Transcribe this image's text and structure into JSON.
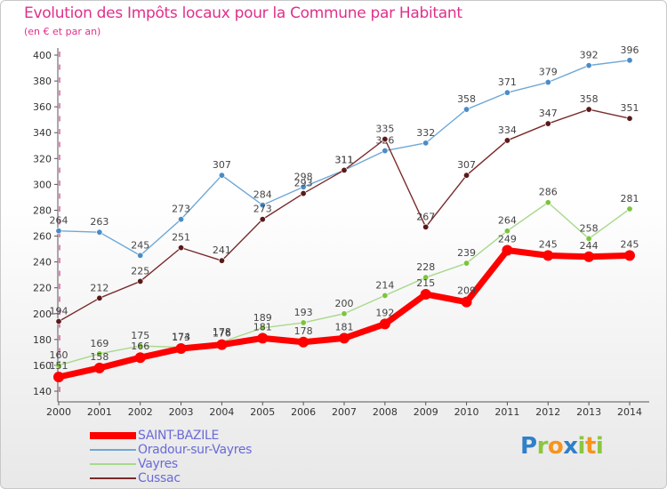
{
  "header": {
    "title": "Evolution des Impôts locaux pour la Commune par Habitant",
    "subtitle": "(en € et par an)"
  },
  "logo": {
    "text": "Proxiti",
    "letters": [
      {
        "ch": "P",
        "color": "#2f80c8"
      },
      {
        "ch": "r",
        "color": "#8cc63f"
      },
      {
        "ch": "o",
        "color": "#f7941d"
      },
      {
        "ch": "x",
        "color": "#2f80c8"
      },
      {
        "ch": "i",
        "color": "#8cc63f"
      },
      {
        "ch": "t",
        "color": "#f7941d"
      },
      {
        "ch": "i",
        "color": "#8cc63f"
      }
    ]
  },
  "chart_data": {
    "type": "line",
    "x": [
      2000,
      2001,
      2002,
      2003,
      2004,
      2005,
      2006,
      2007,
      2008,
      2009,
      2010,
      2011,
      2012,
      2013,
      2014
    ],
    "ylim": [
      140,
      400
    ],
    "yticks": [
      140,
      160,
      180,
      200,
      220,
      240,
      260,
      280,
      300,
      320,
      340,
      360,
      380,
      400
    ],
    "grid": false,
    "legend_position": "bottom-left",
    "series": [
      {
        "name": "Oradour-sur-Vayres",
        "color": "#6fa8d6",
        "marker_color": "#4b8cc8",
        "style": "thin",
        "values": [
          264,
          263,
          245,
          273,
          307,
          284,
          298,
          311,
          326,
          332,
          358,
          371,
          379,
          392,
          396
        ],
        "labels": [
          "264",
          "263",
          "245",
          "273",
          "307",
          "284",
          "298",
          "311",
          "326",
          "332",
          "358",
          "371",
          "379",
          "392",
          "396"
        ]
      },
      {
        "name": "Cussac",
        "color": "#7a2a2a",
        "marker_color": "#5a1a1a",
        "style": "thin",
        "values": [
          194,
          212,
          225,
          251,
          241,
          273,
          293,
          311,
          335,
          267,
          307,
          334,
          347,
          358,
          351
        ],
        "labels": [
          "194",
          "212",
          "225",
          "251",
          "241",
          "273",
          "293",
          "311",
          "335",
          "267",
          "307",
          "334",
          "347",
          "358",
          "351"
        ]
      },
      {
        "name": "Vayres",
        "color": "#a8d88a",
        "marker_color": "#7cc43e",
        "style": "thin",
        "values": [
          160,
          169,
          175,
          174,
          178,
          189,
          193,
          200,
          214,
          228,
          239,
          264,
          286,
          258,
          281
        ],
        "labels": [
          "160",
          "169",
          "175",
          "174",
          "178",
          "189",
          "193",
          "200",
          "214",
          "228",
          "239",
          "264",
          "286",
          "258",
          "281"
        ]
      },
      {
        "name": "SAINT-BAZILE",
        "color": "#ff0000",
        "marker_color": "#ff0000",
        "style": "thick",
        "values": [
          151,
          158,
          166,
          173,
          176,
          181,
          178,
          181,
          192,
          215,
          209,
          249,
          245,
          244,
          245
        ],
        "labels": [
          "151",
          "158",
          "166",
          "173",
          "176",
          "181",
          "178",
          "181",
          "192",
          "215",
          "209",
          "249",
          "245",
          "244",
          "245"
        ]
      }
    ],
    "legend_order": [
      3,
      0,
      2,
      1
    ]
  }
}
